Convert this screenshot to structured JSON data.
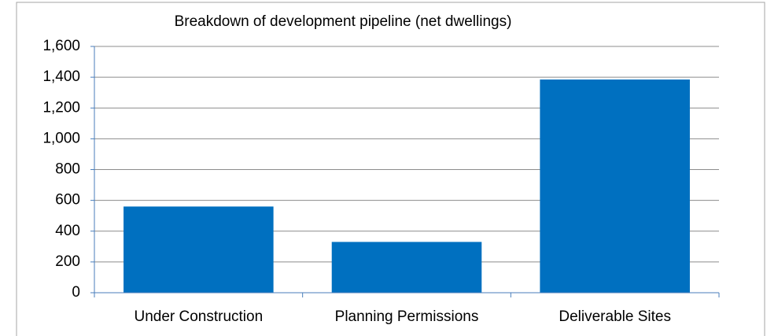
{
  "chart_data": {
    "type": "bar",
    "title": "Breakdown of development pipeline (net dwellings)",
    "categories": [
      "Under Construction",
      "Planning Permissions",
      "Deliverable Sites"
    ],
    "values": [
      560,
      330,
      1385
    ],
    "color": "#0070c0",
    "ylim": [
      0,
      1600
    ],
    "yticks": [
      0,
      200,
      400,
      600,
      800,
      {
        "value": 1000,
        "label": "1,000"
      },
      {
        "value": 1200,
        "label": "1,200"
      },
      {
        "value": 1400,
        "label": "1,400"
      },
      {
        "value": 1600,
        "label": "1,600"
      }
    ],
    "grid": true
  }
}
